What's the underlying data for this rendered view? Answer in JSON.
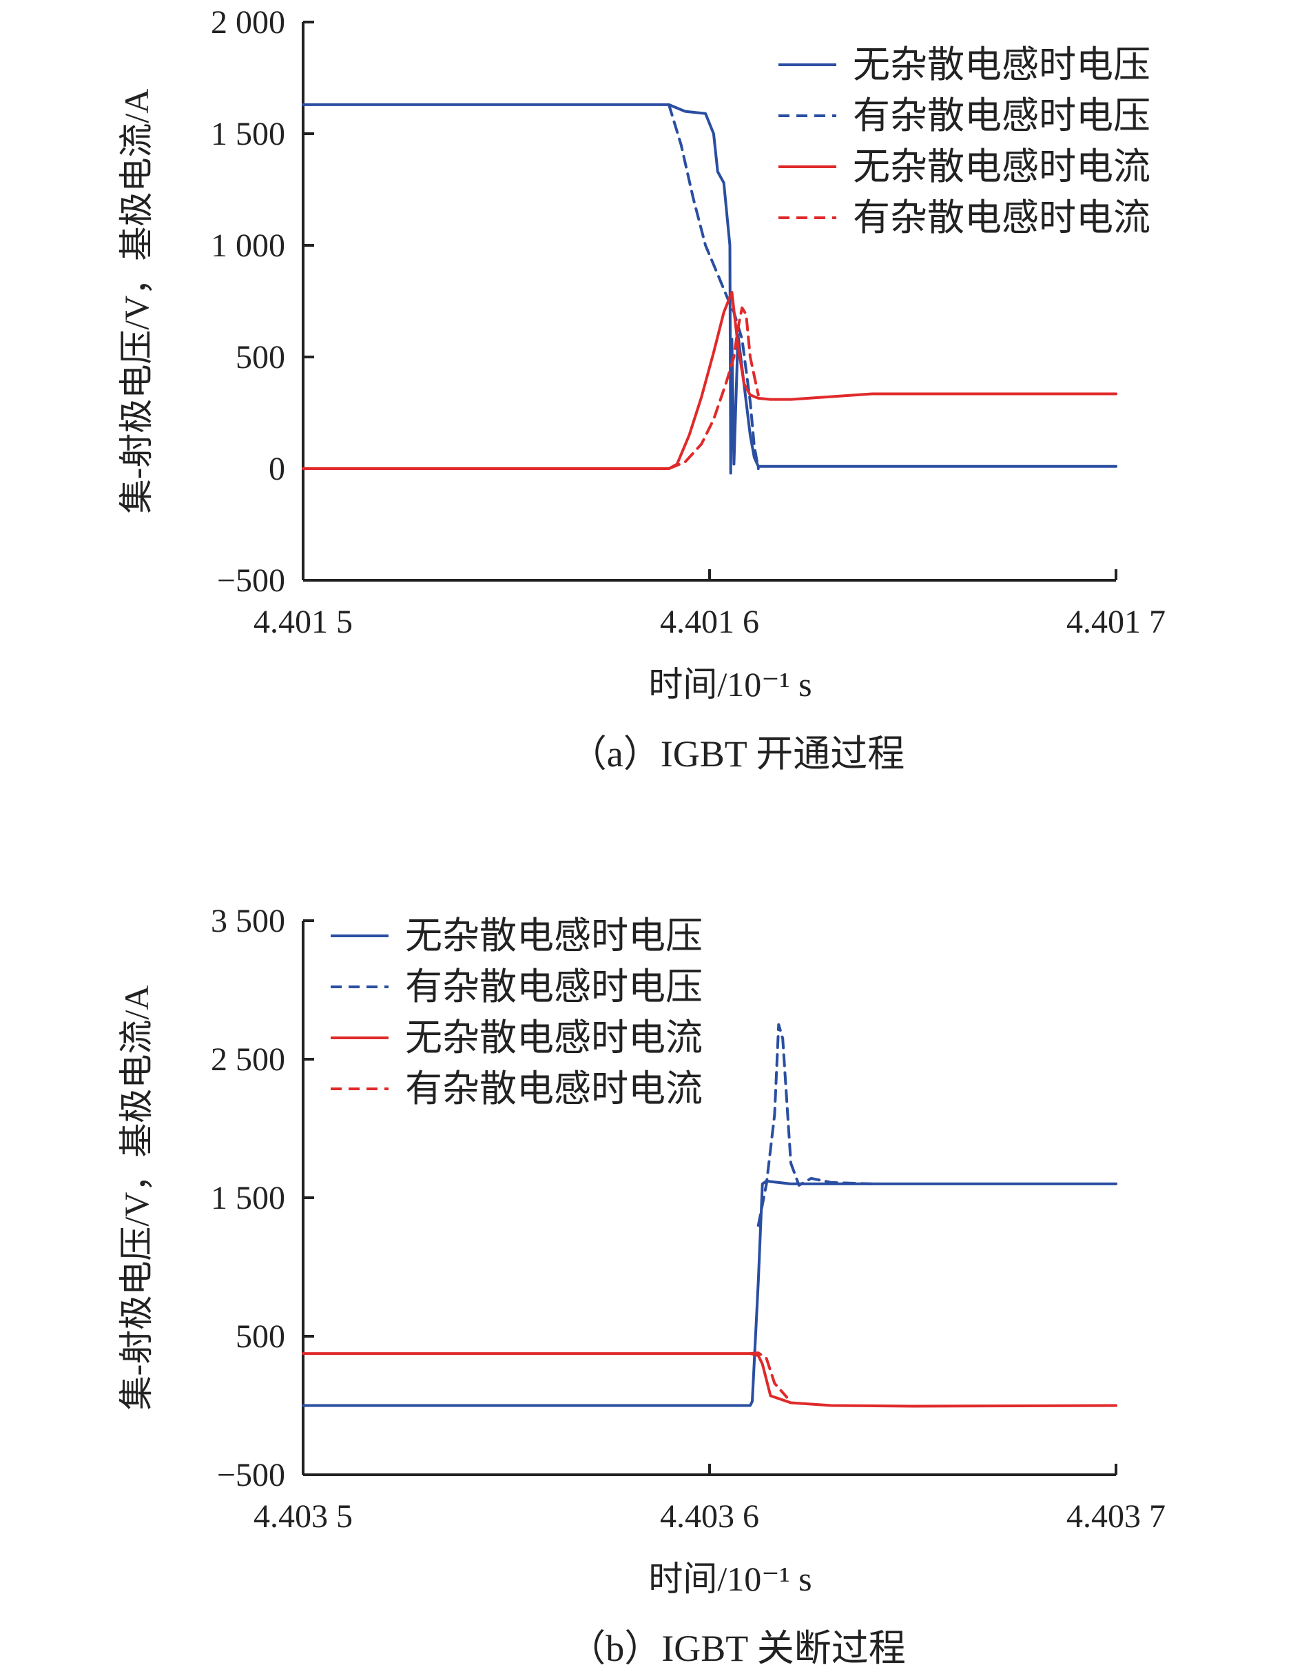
{
  "colors": {
    "voltage": "#2a4ea1",
    "current": "#e02a2a",
    "axis": "#222222"
  },
  "chart_data": [
    {
      "type": "line",
      "caption": "（a）IGBT 开通过程",
      "xlabel": "时间/10⁻¹ s",
      "ylabel": "集-射极电压/V，基极电流/A",
      "xlim": [
        4.4015,
        4.4017
      ],
      "ylim": [
        -500,
        2000
      ],
      "x_ticks": [
        4.4015,
        4.4016,
        4.4017
      ],
      "x_tick_labels": [
        "4.401 5",
        "4.401 6",
        "4.401 7"
      ],
      "y_ticks": [
        -500,
        0,
        500,
        1000,
        1500,
        2000
      ],
      "y_tick_labels": [
        "−500",
        "0",
        "500",
        "1 000",
        "1 500",
        "2 000"
      ],
      "legend_position": "top-right",
      "series": [
        {
          "name": "无杂散电感时电压",
          "color": "#2a4ea1",
          "dash": false,
          "x": [
            4.4015,
            4.40159,
            4.401594,
            4.401599,
            4.401601,
            4.401602,
            4.4016035,
            4.401605,
            4.4016052,
            4.4016055,
            4.401606,
            4.401607,
            4.401609,
            4.40161,
            4.401611,
            4.401612,
            4.401613,
            4.4017
          ],
          "y": [
            1630,
            1630,
            1600,
            1590,
            1500,
            1330,
            1280,
            1000,
            -20,
            580,
            20,
            600,
            300,
            150,
            50,
            10,
            10,
            10
          ]
        },
        {
          "name": "有杂散电感时电压",
          "color": "#2a4ea1",
          "dash": true,
          "x": [
            4.40159,
            4.401593,
            4.401596,
            4.401599,
            4.401602,
            4.4016045,
            4.401606,
            4.401608,
            4.40161,
            4.401611,
            4.401612
          ],
          "y": [
            1630,
            1450,
            1210,
            1000,
            870,
            760,
            700,
            580,
            300,
            100,
            0
          ]
        },
        {
          "name": "无杂散电感时电流",
          "color": "#e02a2a",
          "dash": false,
          "x": [
            4.4015,
            4.40159,
            4.401592,
            4.401595,
            4.401598,
            4.401601,
            4.4016035,
            4.4016055,
            4.401607,
            4.4016085,
            4.40161,
            4.401612,
            4.401615,
            4.40162,
            4.40164,
            4.4017
          ],
          "y": [
            0,
            0,
            20,
            150,
            320,
            520,
            700,
            790,
            550,
            380,
            330,
            315,
            310,
            310,
            335,
            335
          ]
        },
        {
          "name": "有杂散电感时电流",
          "color": "#e02a2a",
          "dash": true,
          "x": [
            4.40159,
            4.401594,
            4.401598,
            4.401601,
            4.401604,
            4.401606,
            4.401607,
            4.401608,
            4.401609,
            4.40161,
            4.401612
          ],
          "y": [
            0,
            30,
            110,
            220,
            380,
            500,
            630,
            720,
            690,
            500,
            330
          ]
        }
      ]
    },
    {
      "type": "line",
      "caption": "（b）IGBT 关断过程",
      "xlabel": "时间/10⁻¹ s",
      "ylabel": "集-射极电压/V，基极电流/A",
      "xlim": [
        4.4035,
        4.4037
      ],
      "ylim": [
        -500,
        3500
      ],
      "x_ticks": [
        4.4035,
        4.4036,
        4.4037
      ],
      "x_tick_labels": [
        "4.403 5",
        "4.403 6",
        "4.403 7"
      ],
      "y_ticks": [
        -500,
        500,
        1500,
        2500,
        3500
      ],
      "y_tick_labels": [
        "−500",
        "500",
        "1 500",
        "2 500",
        "3 500"
      ],
      "legend_position": "top-left",
      "series": [
        {
          "name": "无杂散电感时电压",
          "color": "#2a4ea1",
          "dash": false,
          "x": [
            4.4035,
            4.40361,
            4.4036105,
            4.403612,
            4.403613,
            4.403614,
            4.40362,
            4.4037
          ],
          "y": [
            0,
            0,
            30,
            900,
            1600,
            1620,
            1600,
            1600
          ]
        },
        {
          "name": "有杂散电感时电压",
          "color": "#2a4ea1",
          "dash": true,
          "x": [
            4.403612,
            4.403614,
            4.403616,
            4.403617,
            4.403618,
            4.40362,
            4.403622,
            4.403625,
            4.40363,
            4.40364
          ],
          "y": [
            1300,
            1600,
            2100,
            2750,
            2650,
            1750,
            1590,
            1640,
            1610,
            1600
          ]
        },
        {
          "name": "无杂散电感时电流",
          "color": "#e02a2a",
          "dash": false,
          "x": [
            4.4035,
            4.40361,
            4.403612,
            4.403613,
            4.403615,
            4.40362,
            4.40363,
            4.40365,
            4.4037
          ],
          "y": [
            375,
            375,
            360,
            300,
            70,
            20,
            0,
            -5,
            0
          ]
        },
        {
          "name": "有杂散电感时电流",
          "color": "#e02a2a",
          "dash": true,
          "x": [
            4.40361,
            4.403612,
            4.403614,
            4.403616,
            4.403619
          ],
          "y": [
            375,
            380,
            340,
            160,
            60
          ]
        }
      ]
    }
  ]
}
